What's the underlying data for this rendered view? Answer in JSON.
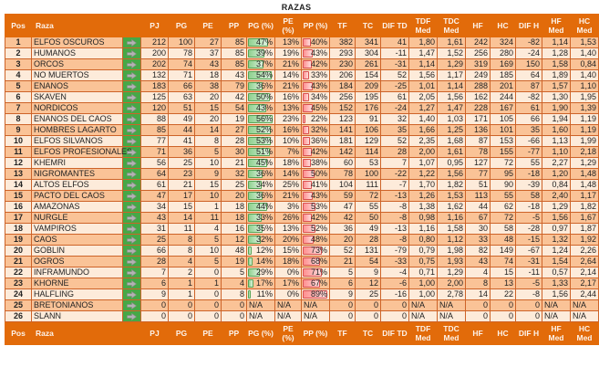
{
  "title": "RAZAS",
  "colors": {
    "header_bg": "#E26B0A",
    "row_odd": "#FAC397",
    "row_even": "#FDEBDA",
    "arrow_col_bg": "#46A846",
    "grid_border": "#CD6328",
    "bar_green_border": "#56A556",
    "bar_green_fill": "#8FD08F",
    "bar_red_border": "#D94F4F",
    "bar_red_fill": "#FF9090",
    "arrow_icon": "#B3B3B3"
  },
  "databars": {
    "pg_pct": {
      "style": "green",
      "min": 11,
      "max": 56
    },
    "pp_pct": {
      "style": "red",
      "min": 22,
      "max": 89
    }
  },
  "table": {
    "columns": [
      {
        "key": "pos",
        "label": "Pos"
      },
      {
        "key": "raza",
        "label": "Raza"
      },
      {
        "key": "arrow",
        "label": ""
      },
      {
        "key": "pj",
        "label": "PJ"
      },
      {
        "key": "pg",
        "label": "PG"
      },
      {
        "key": "pe",
        "label": "PE"
      },
      {
        "key": "pp",
        "label": "PP"
      },
      {
        "key": "pg_pct",
        "label": "PG (%)"
      },
      {
        "key": "pe_pct",
        "label": "PE (%)"
      },
      {
        "key": "pp_pct",
        "label": "PP (%)"
      },
      {
        "key": "tf",
        "label": "TF"
      },
      {
        "key": "tc",
        "label": "TC"
      },
      {
        "key": "dif_td",
        "label": "DIF TD"
      },
      {
        "key": "tdf_med",
        "label": "TDF Med"
      },
      {
        "key": "tdc_med",
        "label": "TDC Med"
      },
      {
        "key": "hf",
        "label": "HF"
      },
      {
        "key": "hc",
        "label": "HC"
      },
      {
        "key": "dif_h",
        "label": "DIF H"
      },
      {
        "key": "hf_med",
        "label": "HF Med"
      },
      {
        "key": "hc_med",
        "label": "HC Med"
      }
    ],
    "rows": [
      {
        "pos": "1",
        "raza": "ELFOS OSCUROS",
        "pj": "212",
        "pg": "100",
        "pe": "27",
        "pp": "85",
        "pg_pct": "47%",
        "pe_pct": "13%",
        "pp_pct": "40%",
        "tf": "382",
        "tc": "341",
        "dif_td": "41",
        "tdf_med": "1,80",
        "tdc_med": "1,61",
        "hf": "242",
        "hc": "324",
        "dif_h": "-82",
        "hf_med": "1,14",
        "hc_med": "1,53"
      },
      {
        "pos": "2",
        "raza": "HUMANOS",
        "pj": "200",
        "pg": "78",
        "pe": "37",
        "pp": "85",
        "pg_pct": "39%",
        "pe_pct": "19%",
        "pp_pct": "43%",
        "tf": "293",
        "tc": "304",
        "dif_td": "-11",
        "tdf_med": "1,47",
        "tdc_med": "1,52",
        "hf": "256",
        "hc": "280",
        "dif_h": "-24",
        "hf_med": "1,28",
        "hc_med": "1,40"
      },
      {
        "pos": "3",
        "raza": "ORCOS",
        "pj": "202",
        "pg": "74",
        "pe": "43",
        "pp": "85",
        "pg_pct": "37%",
        "pe_pct": "21%",
        "pp_pct": "42%",
        "tf": "230",
        "tc": "261",
        "dif_td": "-31",
        "tdf_med": "1,14",
        "tdc_med": "1,29",
        "hf": "319",
        "hc": "169",
        "dif_h": "150",
        "hf_med": "1,58",
        "hc_med": "0,84"
      },
      {
        "pos": "4",
        "raza": "NO MUERTOS",
        "pj": "132",
        "pg": "71",
        "pe": "18",
        "pp": "43",
        "pg_pct": "54%",
        "pe_pct": "14%",
        "pp_pct": "33%",
        "tf": "206",
        "tc": "154",
        "dif_td": "52",
        "tdf_med": "1,56",
        "tdc_med": "1,17",
        "hf": "249",
        "hc": "185",
        "dif_h": "64",
        "hf_med": "1,89",
        "hc_med": "1,40"
      },
      {
        "pos": "5",
        "raza": "ENANOS",
        "pj": "183",
        "pg": "66",
        "pe": "38",
        "pp": "79",
        "pg_pct": "36%",
        "pe_pct": "21%",
        "pp_pct": "43%",
        "tf": "184",
        "tc": "209",
        "dif_td": "-25",
        "tdf_med": "1,01",
        "tdc_med": "1,14",
        "hf": "288",
        "hc": "201",
        "dif_h": "87",
        "hf_med": "1,57",
        "hc_med": "1,10"
      },
      {
        "pos": "6",
        "raza": "SKAVEN",
        "pj": "125",
        "pg": "63",
        "pe": "20",
        "pp": "42",
        "pg_pct": "50%",
        "pe_pct": "16%",
        "pp_pct": "34%",
        "tf": "256",
        "tc": "195",
        "dif_td": "61",
        "tdf_med": "2,05",
        "tdc_med": "1,56",
        "hf": "162",
        "hc": "244",
        "dif_h": "-82",
        "hf_med": "1,30",
        "hc_med": "1,95"
      },
      {
        "pos": "7",
        "raza": "NORDICOS",
        "pj": "120",
        "pg": "51",
        "pe": "15",
        "pp": "54",
        "pg_pct": "43%",
        "pe_pct": "13%",
        "pp_pct": "45%",
        "tf": "152",
        "tc": "176",
        "dif_td": "-24",
        "tdf_med": "1,27",
        "tdc_med": "1,47",
        "hf": "228",
        "hc": "167",
        "dif_h": "61",
        "hf_med": "1,90",
        "hc_med": "1,39"
      },
      {
        "pos": "8",
        "raza": "ENANOS DEL CAOS",
        "pj": "88",
        "pg": "49",
        "pe": "20",
        "pp": "19",
        "pg_pct": "56%",
        "pe_pct": "23%",
        "pp_pct": "22%",
        "tf": "123",
        "tc": "91",
        "dif_td": "32",
        "tdf_med": "1,40",
        "tdc_med": "1,03",
        "hf": "171",
        "hc": "105",
        "dif_h": "66",
        "hf_med": "1,94",
        "hc_med": "1,19"
      },
      {
        "pos": "9",
        "raza": "HOMBRES LAGARTO",
        "pj": "85",
        "pg": "44",
        "pe": "14",
        "pp": "27",
        "pg_pct": "52%",
        "pe_pct": "16%",
        "pp_pct": "32%",
        "tf": "141",
        "tc": "106",
        "dif_td": "35",
        "tdf_med": "1,66",
        "tdc_med": "1,25",
        "hf": "136",
        "hc": "101",
        "dif_h": "35",
        "hf_med": "1,60",
        "hc_med": "1,19"
      },
      {
        "pos": "10",
        "raza": "ELFOS SILVANOS",
        "pj": "77",
        "pg": "41",
        "pe": "8",
        "pp": "28",
        "pg_pct": "53%",
        "pe_pct": "10%",
        "pp_pct": "36%",
        "tf": "181",
        "tc": "129",
        "dif_td": "52",
        "tdf_med": "2,35",
        "tdc_med": "1,68",
        "hf": "87",
        "hc": "153",
        "dif_h": "-66",
        "hf_med": "1,13",
        "hc_med": "1,99"
      },
      {
        "pos": "11",
        "raza": "ELFOS PROFESIONALES",
        "pj": "71",
        "pg": "36",
        "pe": "5",
        "pp": "30",
        "pg_pct": "51%",
        "pe_pct": "7%",
        "pp_pct": "42%",
        "tf": "142",
        "tc": "114",
        "dif_td": "28",
        "tdf_med": "2,00",
        "tdc_med": "1,61",
        "hf": "78",
        "hc": "155",
        "dif_h": "-77",
        "hf_med": "1,10",
        "hc_med": "2,18"
      },
      {
        "pos": "12",
        "raza": "KHEMRI",
        "pj": "56",
        "pg": "25",
        "pe": "10",
        "pp": "21",
        "pg_pct": "45%",
        "pe_pct": "18%",
        "pp_pct": "38%",
        "tf": "60",
        "tc": "53",
        "dif_td": "7",
        "tdf_med": "1,07",
        "tdc_med": "0,95",
        "hf": "127",
        "hc": "72",
        "dif_h": "55",
        "hf_med": "2,27",
        "hc_med": "1,29"
      },
      {
        "pos": "13",
        "raza": "NIGROMANTES",
        "pj": "64",
        "pg": "23",
        "pe": "9",
        "pp": "32",
        "pg_pct": "36%",
        "pe_pct": "14%",
        "pp_pct": "50%",
        "tf": "78",
        "tc": "100",
        "dif_td": "-22",
        "tdf_med": "1,22",
        "tdc_med": "1,56",
        "hf": "77",
        "hc": "95",
        "dif_h": "-18",
        "hf_med": "1,20",
        "hc_med": "1,48"
      },
      {
        "pos": "14",
        "raza": "ALTOS ELFOS",
        "pj": "61",
        "pg": "21",
        "pe": "15",
        "pp": "25",
        "pg_pct": "34%",
        "pe_pct": "25%",
        "pp_pct": "41%",
        "tf": "104",
        "tc": "111",
        "dif_td": "-7",
        "tdf_med": "1,70",
        "tdc_med": "1,82",
        "hf": "51",
        "hc": "90",
        "dif_h": "-39",
        "hf_med": "0,84",
        "hc_med": "1,48"
      },
      {
        "pos": "15",
        "raza": "PACTO DEL CAOS",
        "pj": "47",
        "pg": "17",
        "pe": "10",
        "pp": "20",
        "pg_pct": "36%",
        "pe_pct": "21%",
        "pp_pct": "43%",
        "tf": "59",
        "tc": "72",
        "dif_td": "-13",
        "tdf_med": "1,26",
        "tdc_med": "1,53",
        "hf": "113",
        "hc": "55",
        "dif_h": "58",
        "hf_med": "2,40",
        "hc_med": "1,17"
      },
      {
        "pos": "16",
        "raza": "AMAZONAS",
        "pj": "34",
        "pg": "15",
        "pe": "1",
        "pp": "18",
        "pg_pct": "44%",
        "pe_pct": "3%",
        "pp_pct": "53%",
        "tf": "47",
        "tc": "55",
        "dif_td": "-8",
        "tdf_med": "1,38",
        "tdc_med": "1,62",
        "hf": "44",
        "hc": "62",
        "dif_h": "-18",
        "hf_med": "1,29",
        "hc_med": "1,82"
      },
      {
        "pos": "17",
        "raza": "NURGLE",
        "pj": "43",
        "pg": "14",
        "pe": "11",
        "pp": "18",
        "pg_pct": "33%",
        "pe_pct": "26%",
        "pp_pct": "42%",
        "tf": "42",
        "tc": "50",
        "dif_td": "-8",
        "tdf_med": "0,98",
        "tdc_med": "1,16",
        "hf": "67",
        "hc": "72",
        "dif_h": "-5",
        "hf_med": "1,56",
        "hc_med": "1,67"
      },
      {
        "pos": "18",
        "raza": "VAMPIROS",
        "pj": "31",
        "pg": "11",
        "pe": "4",
        "pp": "16",
        "pg_pct": "35%",
        "pe_pct": "13%",
        "pp_pct": "52%",
        "tf": "36",
        "tc": "49",
        "dif_td": "-13",
        "tdf_med": "1,16",
        "tdc_med": "1,58",
        "hf": "30",
        "hc": "58",
        "dif_h": "-28",
        "hf_med": "0,97",
        "hc_med": "1,87"
      },
      {
        "pos": "19",
        "raza": "CAOS",
        "pj": "25",
        "pg": "8",
        "pe": "5",
        "pp": "12",
        "pg_pct": "32%",
        "pe_pct": "20%",
        "pp_pct": "48%",
        "tf": "20",
        "tc": "28",
        "dif_td": "-8",
        "tdf_med": "0,80",
        "tdc_med": "1,12",
        "hf": "33",
        "hc": "48",
        "dif_h": "-15",
        "hf_med": "1,32",
        "hc_med": "1,92"
      },
      {
        "pos": "20",
        "raza": "GOBLIN",
        "pj": "66",
        "pg": "8",
        "pe": "10",
        "pp": "48",
        "pg_pct": "12%",
        "pe_pct": "15%",
        "pp_pct": "73%",
        "tf": "52",
        "tc": "131",
        "dif_td": "-79",
        "tdf_med": "0,79",
        "tdc_med": "1,98",
        "hf": "82",
        "hc": "149",
        "dif_h": "-67",
        "hf_med": "1,24",
        "hc_med": "2,26"
      },
      {
        "pos": "21",
        "raza": "OGROS",
        "pj": "28",
        "pg": "4",
        "pe": "5",
        "pp": "19",
        "pg_pct": "14%",
        "pe_pct": "18%",
        "pp_pct": "68%",
        "tf": "21",
        "tc": "54",
        "dif_td": "-33",
        "tdf_med": "0,75",
        "tdc_med": "1,93",
        "hf": "43",
        "hc": "74",
        "dif_h": "-31",
        "hf_med": "1,54",
        "hc_med": "2,64"
      },
      {
        "pos": "22",
        "raza": "INFRAMUNDO",
        "pj": "7",
        "pg": "2",
        "pe": "0",
        "pp": "5",
        "pg_pct": "29%",
        "pe_pct": "0%",
        "pp_pct": "71%",
        "tf": "5",
        "tc": "9",
        "dif_td": "-4",
        "tdf_med": "0,71",
        "tdc_med": "1,29",
        "hf": "4",
        "hc": "15",
        "dif_h": "-11",
        "hf_med": "0,57",
        "hc_med": "2,14"
      },
      {
        "pos": "23",
        "raza": "KHORNE",
        "pj": "6",
        "pg": "1",
        "pe": "1",
        "pp": "4",
        "pg_pct": "17%",
        "pe_pct": "17%",
        "pp_pct": "67%",
        "tf": "6",
        "tc": "12",
        "dif_td": "-6",
        "tdf_med": "1,00",
        "tdc_med": "2,00",
        "hf": "8",
        "hc": "13",
        "dif_h": "-5",
        "hf_med": "1,33",
        "hc_med": "2,17"
      },
      {
        "pos": "24",
        "raza": "HALFLING",
        "pj": "9",
        "pg": "1",
        "pe": "0",
        "pp": "8",
        "pg_pct": "11%",
        "pe_pct": "0%",
        "pp_pct": "89%",
        "tf": "9",
        "tc": "25",
        "dif_td": "-16",
        "tdf_med": "1,00",
        "tdc_med": "2,78",
        "hf": "14",
        "hc": "22",
        "dif_h": "-8",
        "hf_med": "1,56",
        "hc_med": "2,44"
      },
      {
        "pos": "25",
        "raza": "BRETONIANOS",
        "pj": "0",
        "pg": "0",
        "pe": "0",
        "pp": "0",
        "pg_pct": "N/A",
        "pe_pct": "N/A",
        "pp_pct": "N/A",
        "tf": "0",
        "tc": "0",
        "dif_td": "0",
        "tdf_med": "N/A",
        "tdc_med": "N/A",
        "hf": "0",
        "hc": "0",
        "dif_h": "0",
        "hf_med": "N/A",
        "hc_med": "N/A"
      },
      {
        "pos": "26",
        "raza": "SLANN",
        "pj": "0",
        "pg": "0",
        "pe": "0",
        "pp": "0",
        "pg_pct": "N/A",
        "pe_pct": "N/A",
        "pp_pct": "N/A",
        "tf": "0",
        "tc": "0",
        "dif_td": "0",
        "tdf_med": "N/A",
        "tdc_med": "N/A",
        "hf": "0",
        "hc": "0",
        "dif_h": "0",
        "hf_med": "N/A",
        "hc_med": "N/A"
      }
    ]
  }
}
